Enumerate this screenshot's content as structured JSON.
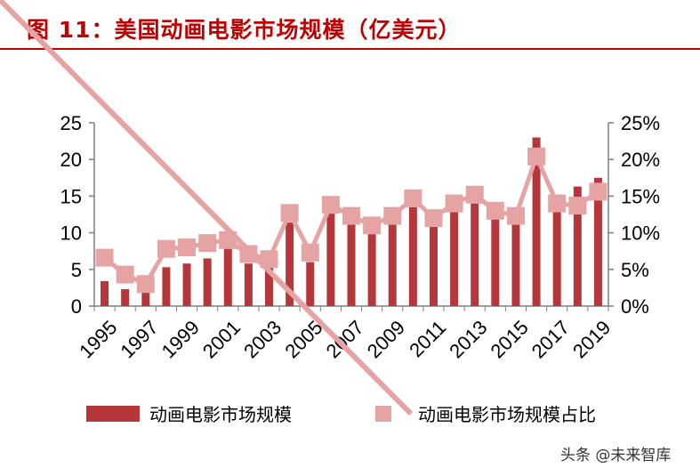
{
  "title": "图  11：美国动画电影市场规模（亿美元）",
  "watermark": "头条 @未来智库",
  "chart_data": {
    "type": "bar",
    "x": [
      1995,
      1996,
      1997,
      1998,
      1999,
      2000,
      2001,
      2002,
      2003,
      2004,
      2005,
      2006,
      2007,
      2008,
      2009,
      2010,
      2011,
      2012,
      2013,
      2014,
      2015,
      2016,
      2017,
      2018,
      2019
    ],
    "x_tick_labels": [
      "1995",
      "1997",
      "1999",
      "2001",
      "2003",
      "2005",
      "2007",
      "2009",
      "2011",
      "2013",
      "2015",
      "2017",
      "2019"
    ],
    "ylim_left": [
      0,
      25
    ],
    "ylim_right": [
      0,
      25
    ],
    "left_ticks": [
      "0",
      "5",
      "10",
      "15",
      "20",
      "25"
    ],
    "right_ticks": [
      "0%",
      "5%",
      "10%",
      "15%",
      "20%",
      "25%"
    ],
    "series": [
      {
        "name": "动画电影市场规模",
        "type": "bar",
        "axis": "left",
        "color": "#b5373a",
        "values": [
          3.4,
          2.3,
          1.9,
          5.3,
          5.8,
          6.5,
          8.0,
          5.8,
          6.0,
          11.4,
          6.0,
          13.0,
          11.7,
          10.0,
          11.2,
          13.5,
          11.2,
          13.1,
          14.0,
          12.2,
          12.0,
          23.0,
          14.1,
          16.3,
          17.5
        ]
      },
      {
        "name": "动画电影市场规模占比",
        "type": "line",
        "axis": "right",
        "color": "#e6a3a3",
        "values": [
          6.6,
          4.3,
          3.0,
          7.8,
          8.0,
          8.6,
          9.0,
          7.1,
          6.4,
          12.7,
          7.3,
          13.8,
          12.3,
          11.0,
          12.3,
          14.7,
          12.0,
          14.0,
          15.2,
          13.0,
          12.3,
          20.4,
          14.0,
          13.7,
          15.6
        ]
      }
    ],
    "legend_position": "bottom"
  }
}
